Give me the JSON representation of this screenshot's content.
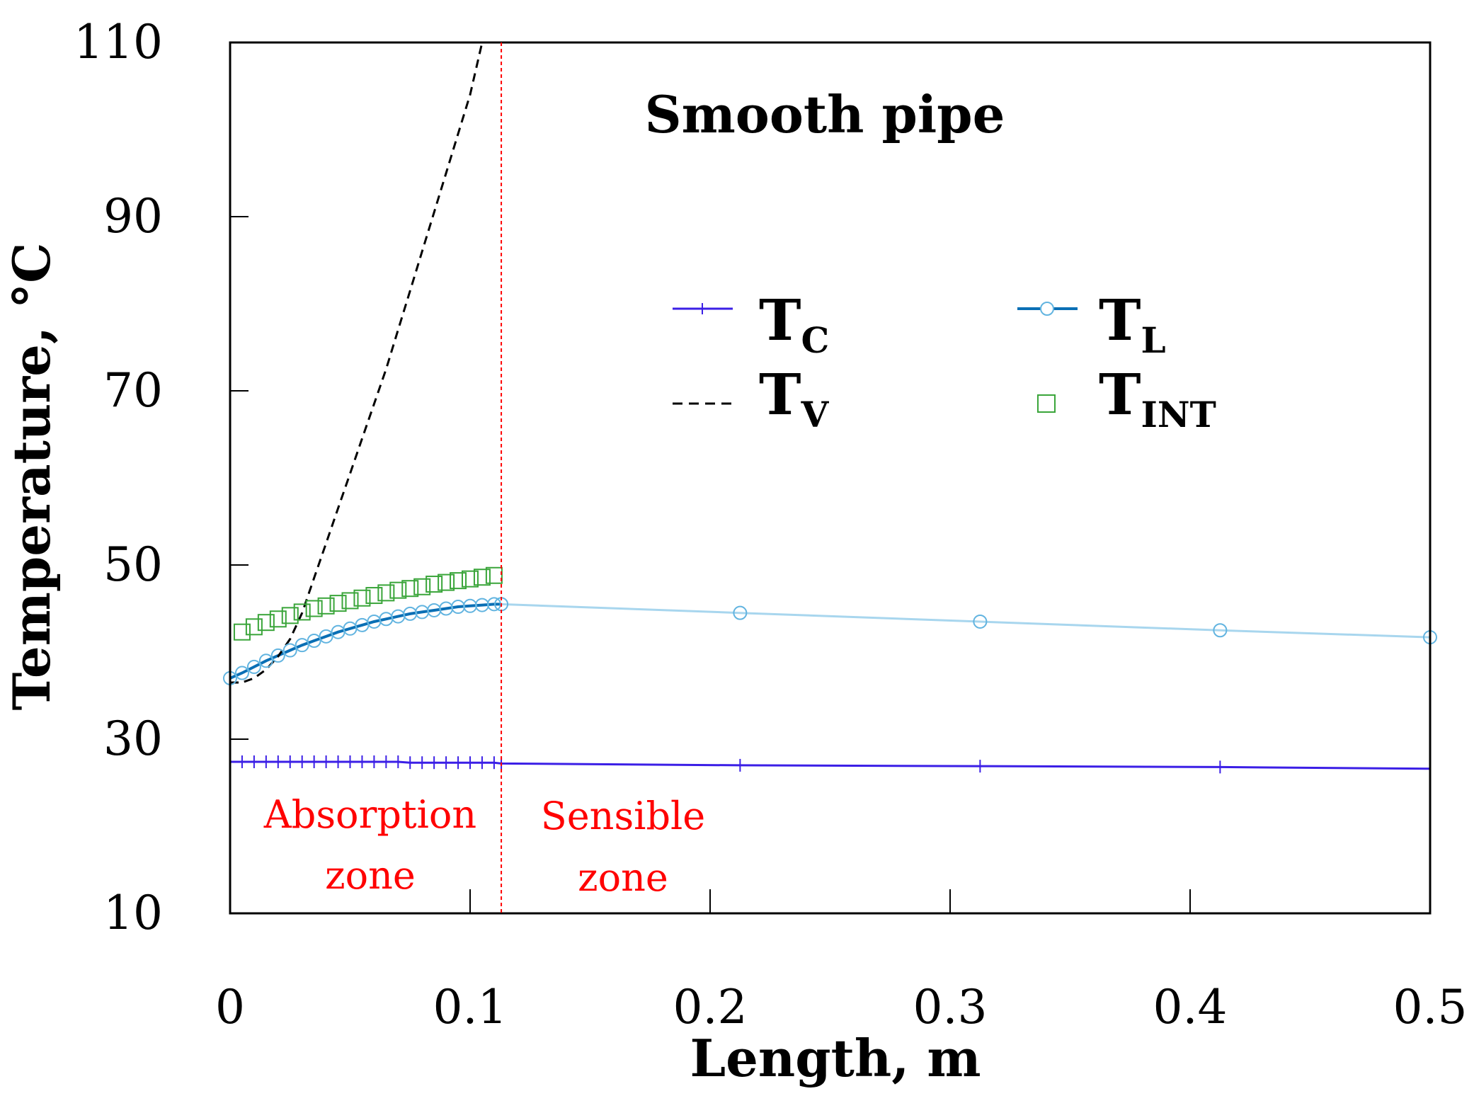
{
  "chart_data": {
    "type": "line",
    "title": "Smooth pipe",
    "xlabel": "Length, m",
    "ylabel": "Temperature, °C",
    "xlim": [
      0,
      0.5
    ],
    "ylim": [
      10,
      110
    ],
    "x_ticks": [
      "0",
      "0.1",
      "0.2",
      "0.3",
      "0.4",
      "0.5"
    ],
    "y_ticks": [
      "10",
      "30",
      "50",
      "70",
      "90",
      "110"
    ],
    "zone_boundary_x": 0.113,
    "zones": [
      {
        "line1": "Absorption",
        "line2": "zone"
      },
      {
        "line1": "Sensible",
        "line2": "zone"
      }
    ],
    "series": [
      {
        "name": "T_C",
        "label_main": "T",
        "label_sub": "C",
        "color": "#3b1fe6",
        "style": "line-plus",
        "x": [
          0,
          0.005,
          0.01,
          0.015,
          0.02,
          0.025,
          0.03,
          0.035,
          0.04,
          0.045,
          0.05,
          0.055,
          0.06,
          0.065,
          0.07,
          0.075,
          0.08,
          0.085,
          0.09,
          0.095,
          0.1,
          0.105,
          0.11,
          0.113,
          0.2125,
          0.3125,
          0.4125,
          0.5
        ],
        "y": [
          27.4,
          27.4,
          27.4,
          27.4,
          27.4,
          27.4,
          27.4,
          27.4,
          27.4,
          27.4,
          27.4,
          27.4,
          27.4,
          27.4,
          27.4,
          27.3,
          27.3,
          27.3,
          27.3,
          27.3,
          27.3,
          27.3,
          27.3,
          27.2,
          27.0,
          26.9,
          26.8,
          26.6
        ]
      },
      {
        "name": "T_L",
        "label_main": "T",
        "label_sub": "L",
        "color": "#0a6fb5",
        "light_color": "#a8d6ee",
        "marker_color": "#62b4e0",
        "style": "line-circle",
        "x": [
          0,
          0.005,
          0.01,
          0.015,
          0.02,
          0.025,
          0.03,
          0.035,
          0.04,
          0.045,
          0.05,
          0.055,
          0.06,
          0.065,
          0.07,
          0.075,
          0.08,
          0.085,
          0.09,
          0.095,
          0.1,
          0.105,
          0.11,
          0.113,
          0.2125,
          0.3125,
          0.4125,
          0.5
        ],
        "y": [
          37.0,
          37.6,
          38.3,
          39.0,
          39.6,
          40.2,
          40.8,
          41.3,
          41.8,
          42.3,
          42.7,
          43.1,
          43.5,
          43.8,
          44.1,
          44.4,
          44.6,
          44.8,
          45.0,
          45.2,
          45.3,
          45.4,
          45.5,
          45.5,
          44.5,
          43.5,
          42.5,
          41.7
        ]
      },
      {
        "name": "T_V",
        "label_main": "T",
        "label_sub": "V",
        "color": "#000000",
        "style": "dashed",
        "x": [
          0,
          0.005,
          0.01,
          0.015,
          0.02,
          0.025,
          0.03,
          0.035,
          0.04,
          0.045,
          0.05,
          0.055,
          0.06,
          0.065,
          0.07,
          0.075,
          0.08,
          0.085,
          0.09,
          0.095,
          0.1,
          0.105
        ],
        "y": [
          36.5,
          36.5,
          37.0,
          38.0,
          39.5,
          41.5,
          44.5,
          48.5,
          52.5,
          56.5,
          60.5,
          64.5,
          68.5,
          72.5,
          77.0,
          81.5,
          86.0,
          90.5,
          95.0,
          99.5,
          104.0,
          110.0
        ]
      },
      {
        "name": "T_INT",
        "label_main": "T",
        "label_sub": "INT",
        "color": "#3aa53a",
        "style": "square-markers",
        "x": [
          0.005,
          0.01,
          0.015,
          0.02,
          0.025,
          0.03,
          0.035,
          0.04,
          0.045,
          0.05,
          0.055,
          0.06,
          0.065,
          0.07,
          0.075,
          0.08,
          0.085,
          0.09,
          0.095,
          0.1,
          0.105,
          0.11
        ],
        "y": [
          42.3,
          42.9,
          43.4,
          43.8,
          44.2,
          44.6,
          45.0,
          45.3,
          45.6,
          45.9,
          46.2,
          46.5,
          46.8,
          47.1,
          47.3,
          47.5,
          47.8,
          48.0,
          48.2,
          48.4,
          48.6,
          48.8
        ]
      }
    ]
  }
}
